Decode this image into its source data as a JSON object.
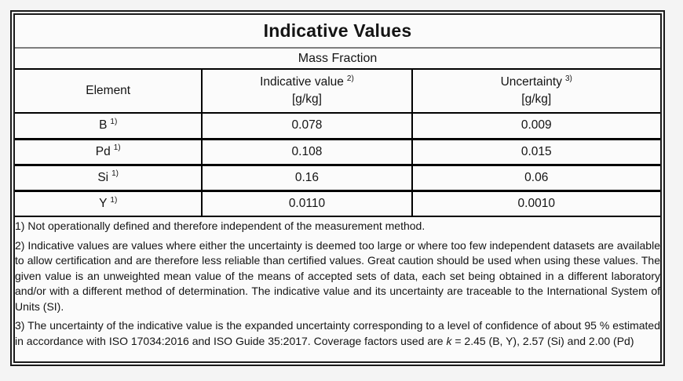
{
  "table": {
    "title": "Indicative Values",
    "subtitle": "Mass Fraction",
    "columns": {
      "element": {
        "label": "Element"
      },
      "indicative": {
        "label": "Indicative value",
        "sup": "2)",
        "unit": "[g/kg]"
      },
      "uncertainty": {
        "label": "Uncertainty",
        "sup": "3)",
        "unit": "[g/kg]"
      }
    },
    "rows": [
      {
        "element": "B",
        "element_sup": "1)",
        "indicative_value": "0.078",
        "uncertainty": "0.009"
      },
      {
        "element": "Pd",
        "element_sup": "1)",
        "indicative_value": "0.108",
        "uncertainty": "0.015"
      },
      {
        "element": "Si",
        "element_sup": "1)",
        "indicative_value": "0.16",
        "uncertainty": "0.06"
      },
      {
        "element": "Y",
        "element_sup": "1)",
        "indicative_value": "0.0110",
        "uncertainty": "0.0010"
      }
    ],
    "footnotes": {
      "fn1": "1) Not operationally defined and therefore independent of the measurement method.",
      "fn2": "2) Indicative values are values where either the uncertainty is deemed too large or where too few independent datasets are available to allow certification and are therefore less reliable than certified values. Great caution should be used when using these values. The given value is an unweighted mean value of the means of accepted sets of data, each set being obtained in a different laboratory and/or with a different method of determination. The indicative value and its uncertainty are traceable to the International System of Units (SI).",
      "fn3_before_k": "3) The uncertainty of the indicative value is the expanded uncertainty corresponding to a level of confidence of about 95 % estimated in accordance with ISO 17034:2016 and ISO Guide 35:2017. Coverage factors used are ",
      "fn3_k": "k",
      "fn3_after_k": " = 2.45 (B, Y), 2.57 (Si) and 2.00 (Pd)"
    },
    "colors": {
      "outer_border": "#1a1a1a",
      "inner_border": "#000000",
      "title_divider": "#7d7d7d",
      "cell_background": "#fbfbfb",
      "page_background": "#f4f4f4",
      "text": "#141414"
    }
  }
}
